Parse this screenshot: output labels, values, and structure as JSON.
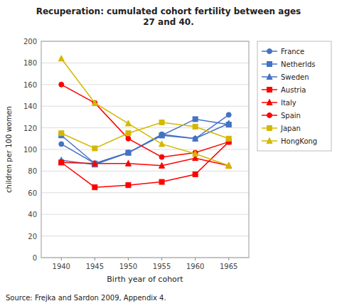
{
  "chart_data": {
    "type": "line",
    "title": "Recuperation: cumulated cohort fertility between ages\n27 and 40.",
    "xlabel": "Birth year of cohort",
    "ylabel": "children per 100 women",
    "source": "Source: Frejka and Sardon 2009, Appendix 4.",
    "x": [
      1940,
      1945,
      1950,
      1955,
      1960,
      1965
    ],
    "series": [
      {
        "name": "France",
        "color": "#4472C4",
        "marker": "circle",
        "values": [
          105,
          87,
          97,
          114,
          110,
          132
        ]
      },
      {
        "name": "Netherlds",
        "color": "#4472C4",
        "marker": "square",
        "values": [
          113,
          87,
          97,
          113,
          128,
          123
        ]
      },
      {
        "name": "Sweden",
        "color": "#4472C4",
        "marker": "triangle",
        "values": [
          90,
          86,
          97,
          113,
          110,
          124
        ]
      },
      {
        "name": "Austria",
        "color": "#FF0000",
        "marker": "square",
        "values": [
          88,
          65,
          67,
          70,
          77,
          107
        ]
      },
      {
        "name": "Italy",
        "color": "#FF0000",
        "marker": "triangle",
        "values": [
          88,
          87,
          87,
          85,
          92,
          85
        ]
      },
      {
        "name": "Spain",
        "color": "#FF0000",
        "marker": "circle",
        "values": [
          160,
          143,
          110,
          93,
          97,
          107
        ]
      },
      {
        "name": "Japan",
        "color": "#D4B800",
        "marker": "square",
        "values": [
          115,
          101,
          115,
          125,
          121,
          110
        ]
      },
      {
        "name": "HongKong",
        "color": "#D4B800",
        "marker": "triangle",
        "values": [
          184,
          143,
          124,
          105,
          96,
          85
        ]
      }
    ],
    "xlim": [
      1937,
      1968
    ],
    "xticks": [
      1940,
      1945,
      1950,
      1955,
      1960,
      1965
    ],
    "ylim": [
      0,
      200
    ],
    "yticks": [
      0,
      20,
      40,
      60,
      80,
      100,
      120,
      140,
      160,
      180,
      200
    ],
    "grid": "y",
    "legend": "right"
  }
}
